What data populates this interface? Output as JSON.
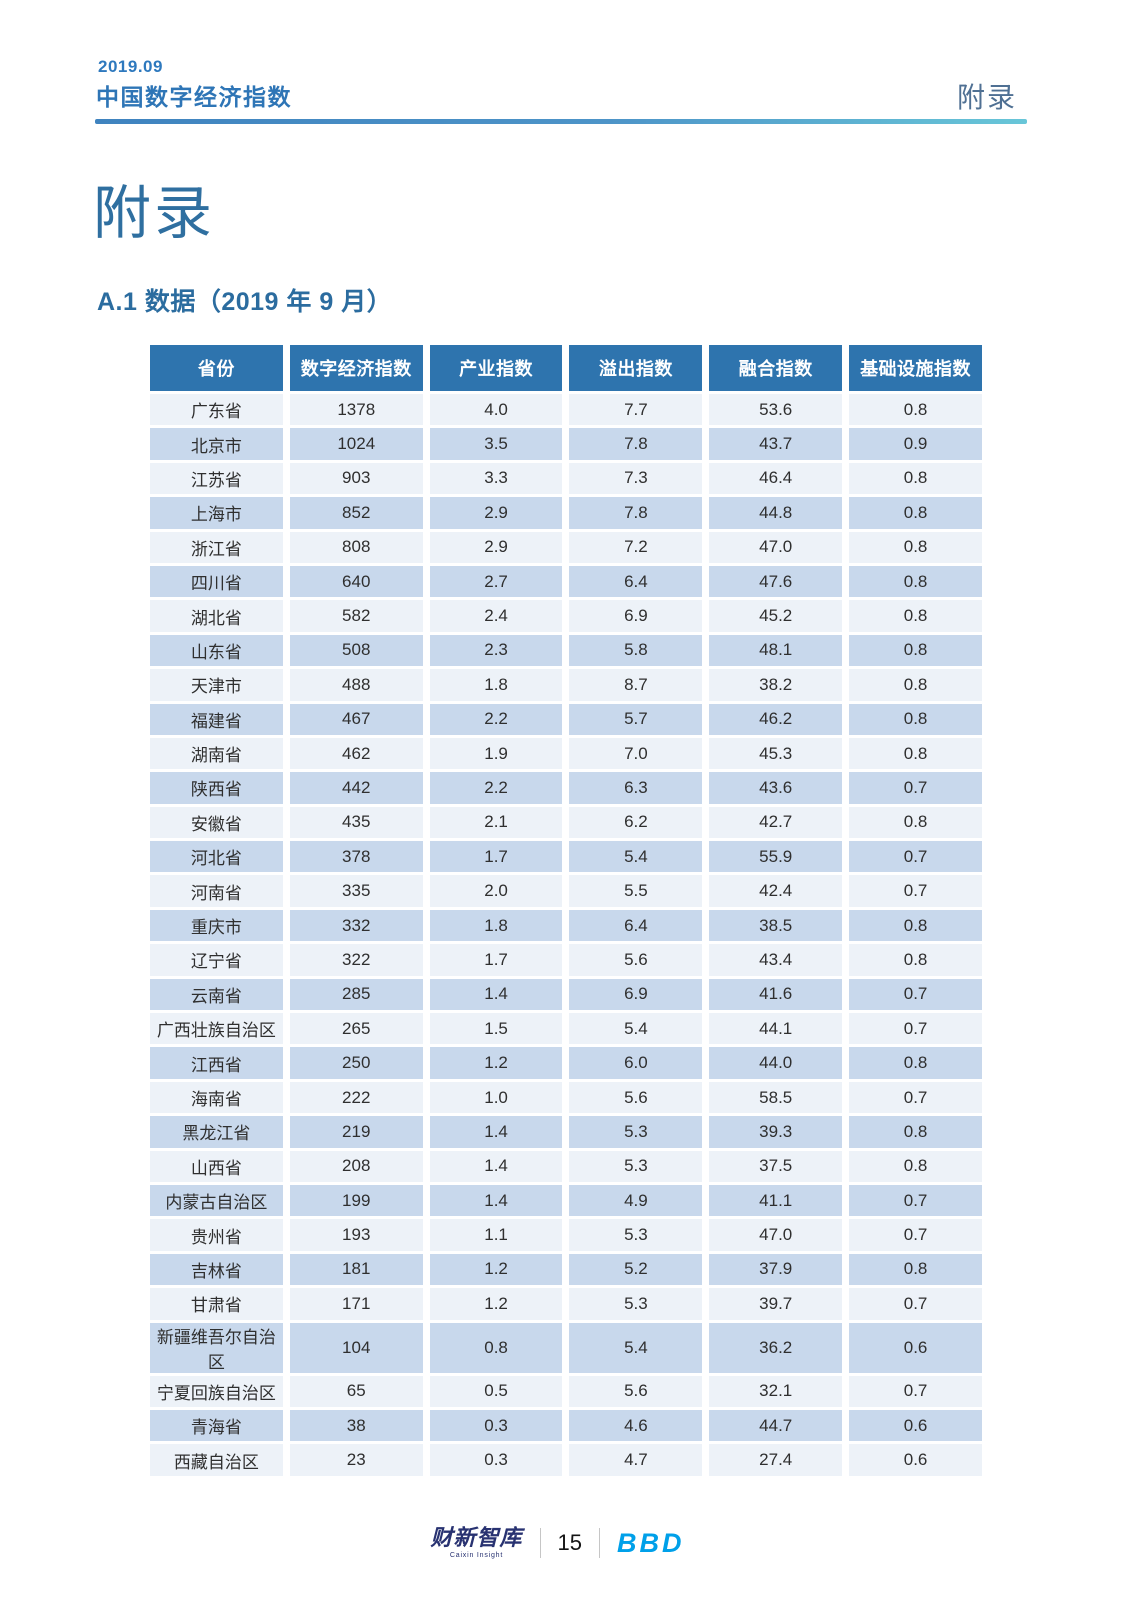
{
  "page_header": {
    "date": "2019.09",
    "report_title": "中国数字经济指数",
    "section_label": "附录"
  },
  "main": {
    "title": "附录",
    "section_heading": "A.1 数据（2019 年 9 月）"
  },
  "table": {
    "columns": [
      "省份",
      "数字经济指数",
      "产业指数",
      "溢出指数",
      "融合指数",
      "基础设施指数"
    ],
    "rows": [
      [
        "广东省",
        "1378",
        "4.0",
        "7.7",
        "53.6",
        "0.8"
      ],
      [
        "北京市",
        "1024",
        "3.5",
        "7.8",
        "43.7",
        "0.9"
      ],
      [
        "江苏省",
        "903",
        "3.3",
        "7.3",
        "46.4",
        "0.8"
      ],
      [
        "上海市",
        "852",
        "2.9",
        "7.8",
        "44.8",
        "0.8"
      ],
      [
        "浙江省",
        "808",
        "2.9",
        "7.2",
        "47.0",
        "0.8"
      ],
      [
        "四川省",
        "640",
        "2.7",
        "6.4",
        "47.6",
        "0.8"
      ],
      [
        "湖北省",
        "582",
        "2.4",
        "6.9",
        "45.2",
        "0.8"
      ],
      [
        "山东省",
        "508",
        "2.3",
        "5.8",
        "48.1",
        "0.8"
      ],
      [
        "天津市",
        "488",
        "1.8",
        "8.7",
        "38.2",
        "0.8"
      ],
      [
        "福建省",
        "467",
        "2.2",
        "5.7",
        "46.2",
        "0.8"
      ],
      [
        "湖南省",
        "462",
        "1.9",
        "7.0",
        "45.3",
        "0.8"
      ],
      [
        "陕西省",
        "442",
        "2.2",
        "6.3",
        "43.6",
        "0.7"
      ],
      [
        "安徽省",
        "435",
        "2.1",
        "6.2",
        "42.7",
        "0.8"
      ],
      [
        "河北省",
        "378",
        "1.7",
        "5.4",
        "55.9",
        "0.7"
      ],
      [
        "河南省",
        "335",
        "2.0",
        "5.5",
        "42.4",
        "0.7"
      ],
      [
        "重庆市",
        "332",
        "1.8",
        "6.4",
        "38.5",
        "0.8"
      ],
      [
        "辽宁省",
        "322",
        "1.7",
        "5.6",
        "43.4",
        "0.8"
      ],
      [
        "云南省",
        "285",
        "1.4",
        "6.9",
        "41.6",
        "0.7"
      ],
      [
        "广西壮族自治区",
        "265",
        "1.5",
        "5.4",
        "44.1",
        "0.7"
      ],
      [
        "江西省",
        "250",
        "1.2",
        "6.0",
        "44.0",
        "0.8"
      ],
      [
        "海南省",
        "222",
        "1.0",
        "5.6",
        "58.5",
        "0.7"
      ],
      [
        "黑龙江省",
        "219",
        "1.4",
        "5.3",
        "39.3",
        "0.8"
      ],
      [
        "山西省",
        "208",
        "1.4",
        "5.3",
        "37.5",
        "0.8"
      ],
      [
        "内蒙古自治区",
        "199",
        "1.4",
        "4.9",
        "41.1",
        "0.7"
      ],
      [
        "贵州省",
        "193",
        "1.1",
        "5.3",
        "47.0",
        "0.7"
      ],
      [
        "吉林省",
        "181",
        "1.2",
        "5.2",
        "37.9",
        "0.8"
      ],
      [
        "甘肃省",
        "171",
        "1.2",
        "5.3",
        "39.7",
        "0.7"
      ],
      [
        "新疆维吾尔自治区",
        "104",
        "0.8",
        "5.4",
        "36.2",
        "0.6"
      ],
      [
        "宁夏回族自治区",
        "65",
        "0.5",
        "5.6",
        "32.1",
        "0.7"
      ],
      [
        "青海省",
        "38",
        "0.3",
        "4.6",
        "44.7",
        "0.6"
      ],
      [
        "西藏自治区",
        "23",
        "0.3",
        "4.7",
        "27.4",
        "0.6"
      ]
    ]
  },
  "footer": {
    "caixin_logo": "财新智库",
    "caixin_sub": "Caixin Insight",
    "page_number": "15",
    "bbd_logo": "BBD"
  },
  "colors": {
    "accent_blue": "#2e75b6",
    "table_header_bg": "#2e74ae",
    "row_light": "#edf2f8",
    "row_dark": "#c8d8ec",
    "rule_gradient_start": "#3f83bf",
    "rule_gradient_end": "#68c6d8",
    "caixin_navy": "#283271",
    "bbd_cyan": "#00a0e9"
  }
}
